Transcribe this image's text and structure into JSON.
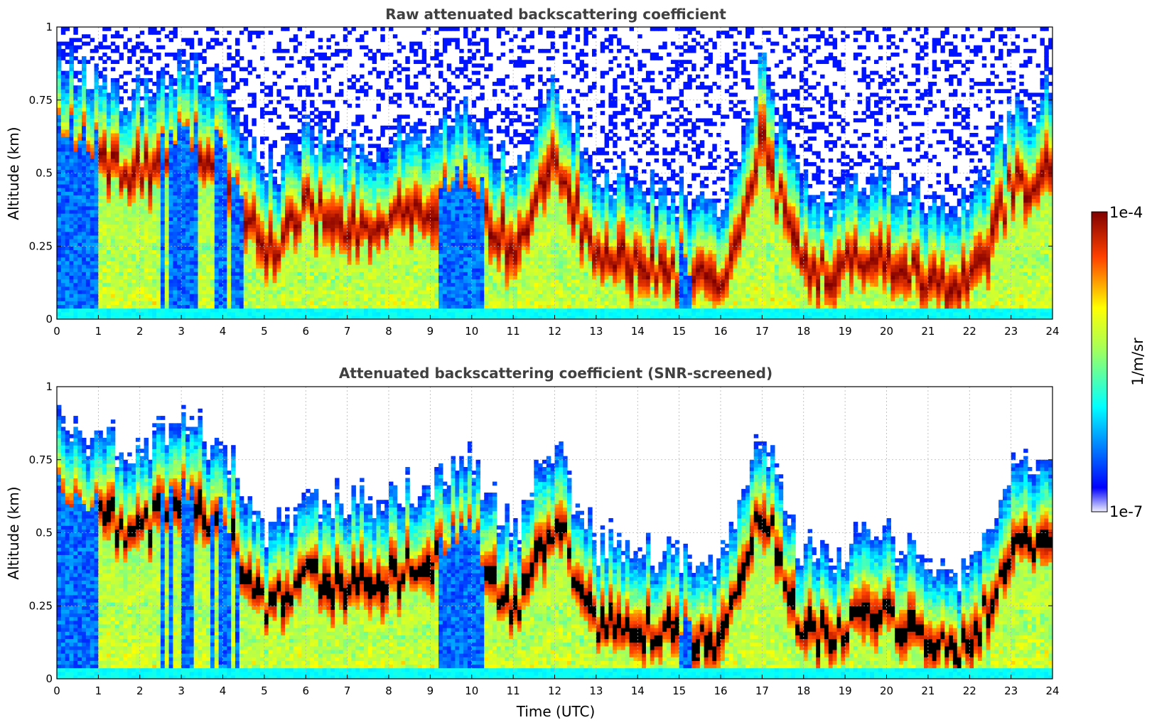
{
  "chart_data": [
    {
      "type": "heatmap",
      "title": "Raw attenuated backscattering coefficient",
      "xlabel": "",
      "ylabel": "Altitude (km)",
      "xlim": [
        0,
        24
      ],
      "ylim": [
        0,
        1
      ],
      "x_ticks": [
        "0",
        "1",
        "2",
        "3",
        "4",
        "5",
        "6",
        "7",
        "8",
        "9",
        "10",
        "11",
        "12",
        "13",
        "14",
        "15",
        "16",
        "17",
        "18",
        "19",
        "20",
        "21",
        "22",
        "23",
        "24"
      ],
      "y_ticks": [
        "0",
        "0.25",
        "0.5",
        "0.75",
        "1"
      ],
      "grid": true,
      "layer_heights_km": [
        0.62,
        0.55,
        0.5,
        0.6,
        0.55,
        0.22,
        0.38,
        0.3,
        0.35,
        0.4,
        0.45,
        0.22,
        0.55,
        0.2,
        0.18,
        0.15,
        0.12,
        0.6,
        0.15,
        0.18,
        0.2,
        0.12,
        0.1,
        0.45,
        0.5
      ]
    },
    {
      "type": "heatmap",
      "title": "Attenuated backscattering coefficient (SNR-screened)",
      "xlabel": "Time (UTC)",
      "ylabel": "Altitude (km)",
      "xlim": [
        0,
        24
      ],
      "ylim": [
        0,
        1
      ],
      "x_ticks": [
        "0",
        "1",
        "2",
        "3",
        "4",
        "5",
        "6",
        "7",
        "8",
        "9",
        "10",
        "11",
        "12",
        "13",
        "14",
        "15",
        "16",
        "17",
        "18",
        "19",
        "20",
        "21",
        "22",
        "23",
        "24"
      ],
      "y_ticks": [
        "0",
        "0.25",
        "0.5",
        "0.75",
        "1"
      ],
      "grid": true,
      "layer_heights_km": [
        0.62,
        0.55,
        0.5,
        0.6,
        0.55,
        0.22,
        0.38,
        0.3,
        0.35,
        0.4,
        0.45,
        0.22,
        0.55,
        0.2,
        0.18,
        0.15,
        0.12,
        0.6,
        0.15,
        0.18,
        0.2,
        0.12,
        0.1,
        0.45,
        0.5
      ]
    }
  ],
  "colorbar": {
    "max_label": "1e-4",
    "min_label": "1e-7",
    "units": "1/m/sr"
  },
  "colors": {
    "strong_layer": "#8b0000",
    "screened_layer": "#000000",
    "weak_signal": "#0020ff",
    "title_gray": "#404040"
  }
}
